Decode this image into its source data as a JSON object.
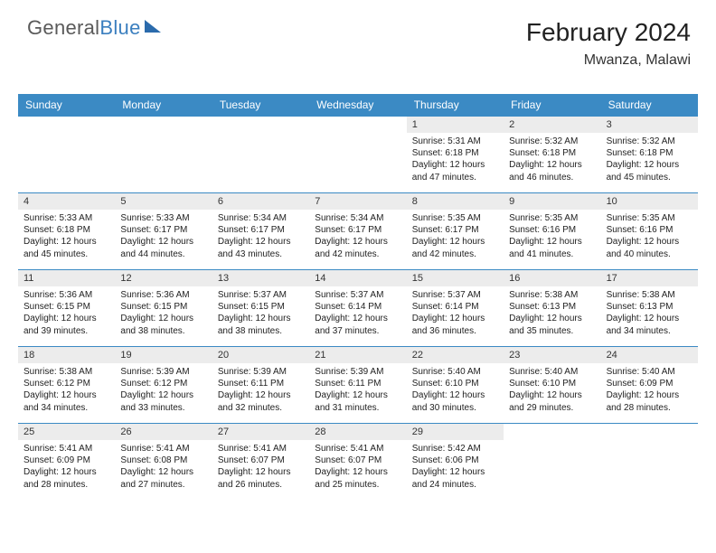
{
  "logo": {
    "word1": "General",
    "word2": "Blue"
  },
  "header": {
    "title": "February 2024",
    "subtitle": "Mwanza, Malawi"
  },
  "colors": {
    "header_bar": "#3b8ac4",
    "week_divider": "#3b8ac4",
    "daynum_bg": "#ececec",
    "text": "#222222",
    "logo_gray": "#5a5a5a",
    "logo_blue": "#3b7fbf"
  },
  "dayHeaders": [
    "Sunday",
    "Monday",
    "Tuesday",
    "Wednesday",
    "Thursday",
    "Friday",
    "Saturday"
  ],
  "weeks": [
    [
      {
        "n": "",
        "lines": []
      },
      {
        "n": "",
        "lines": []
      },
      {
        "n": "",
        "lines": []
      },
      {
        "n": "",
        "lines": []
      },
      {
        "n": "1",
        "lines": [
          "Sunrise: 5:31 AM",
          "Sunset: 6:18 PM",
          "Daylight: 12 hours",
          "and 47 minutes."
        ]
      },
      {
        "n": "2",
        "lines": [
          "Sunrise: 5:32 AM",
          "Sunset: 6:18 PM",
          "Daylight: 12 hours",
          "and 46 minutes."
        ]
      },
      {
        "n": "3",
        "lines": [
          "Sunrise: 5:32 AM",
          "Sunset: 6:18 PM",
          "Daylight: 12 hours",
          "and 45 minutes."
        ]
      }
    ],
    [
      {
        "n": "4",
        "lines": [
          "Sunrise: 5:33 AM",
          "Sunset: 6:18 PM",
          "Daylight: 12 hours",
          "and 45 minutes."
        ]
      },
      {
        "n": "5",
        "lines": [
          "Sunrise: 5:33 AM",
          "Sunset: 6:17 PM",
          "Daylight: 12 hours",
          "and 44 minutes."
        ]
      },
      {
        "n": "6",
        "lines": [
          "Sunrise: 5:34 AM",
          "Sunset: 6:17 PM",
          "Daylight: 12 hours",
          "and 43 minutes."
        ]
      },
      {
        "n": "7",
        "lines": [
          "Sunrise: 5:34 AM",
          "Sunset: 6:17 PM",
          "Daylight: 12 hours",
          "and 42 minutes."
        ]
      },
      {
        "n": "8",
        "lines": [
          "Sunrise: 5:35 AM",
          "Sunset: 6:17 PM",
          "Daylight: 12 hours",
          "and 42 minutes."
        ]
      },
      {
        "n": "9",
        "lines": [
          "Sunrise: 5:35 AM",
          "Sunset: 6:16 PM",
          "Daylight: 12 hours",
          "and 41 minutes."
        ]
      },
      {
        "n": "10",
        "lines": [
          "Sunrise: 5:35 AM",
          "Sunset: 6:16 PM",
          "Daylight: 12 hours",
          "and 40 minutes."
        ]
      }
    ],
    [
      {
        "n": "11",
        "lines": [
          "Sunrise: 5:36 AM",
          "Sunset: 6:15 PM",
          "Daylight: 12 hours",
          "and 39 minutes."
        ]
      },
      {
        "n": "12",
        "lines": [
          "Sunrise: 5:36 AM",
          "Sunset: 6:15 PM",
          "Daylight: 12 hours",
          "and 38 minutes."
        ]
      },
      {
        "n": "13",
        "lines": [
          "Sunrise: 5:37 AM",
          "Sunset: 6:15 PM",
          "Daylight: 12 hours",
          "and 38 minutes."
        ]
      },
      {
        "n": "14",
        "lines": [
          "Sunrise: 5:37 AM",
          "Sunset: 6:14 PM",
          "Daylight: 12 hours",
          "and 37 minutes."
        ]
      },
      {
        "n": "15",
        "lines": [
          "Sunrise: 5:37 AM",
          "Sunset: 6:14 PM",
          "Daylight: 12 hours",
          "and 36 minutes."
        ]
      },
      {
        "n": "16",
        "lines": [
          "Sunrise: 5:38 AM",
          "Sunset: 6:13 PM",
          "Daylight: 12 hours",
          "and 35 minutes."
        ]
      },
      {
        "n": "17",
        "lines": [
          "Sunrise: 5:38 AM",
          "Sunset: 6:13 PM",
          "Daylight: 12 hours",
          "and 34 minutes."
        ]
      }
    ],
    [
      {
        "n": "18",
        "lines": [
          "Sunrise: 5:38 AM",
          "Sunset: 6:12 PM",
          "Daylight: 12 hours",
          "and 34 minutes."
        ]
      },
      {
        "n": "19",
        "lines": [
          "Sunrise: 5:39 AM",
          "Sunset: 6:12 PM",
          "Daylight: 12 hours",
          "and 33 minutes."
        ]
      },
      {
        "n": "20",
        "lines": [
          "Sunrise: 5:39 AM",
          "Sunset: 6:11 PM",
          "Daylight: 12 hours",
          "and 32 minutes."
        ]
      },
      {
        "n": "21",
        "lines": [
          "Sunrise: 5:39 AM",
          "Sunset: 6:11 PM",
          "Daylight: 12 hours",
          "and 31 minutes."
        ]
      },
      {
        "n": "22",
        "lines": [
          "Sunrise: 5:40 AM",
          "Sunset: 6:10 PM",
          "Daylight: 12 hours",
          "and 30 minutes."
        ]
      },
      {
        "n": "23",
        "lines": [
          "Sunrise: 5:40 AM",
          "Sunset: 6:10 PM",
          "Daylight: 12 hours",
          "and 29 minutes."
        ]
      },
      {
        "n": "24",
        "lines": [
          "Sunrise: 5:40 AM",
          "Sunset: 6:09 PM",
          "Daylight: 12 hours",
          "and 28 minutes."
        ]
      }
    ],
    [
      {
        "n": "25",
        "lines": [
          "Sunrise: 5:41 AM",
          "Sunset: 6:09 PM",
          "Daylight: 12 hours",
          "and 28 minutes."
        ]
      },
      {
        "n": "26",
        "lines": [
          "Sunrise: 5:41 AM",
          "Sunset: 6:08 PM",
          "Daylight: 12 hours",
          "and 27 minutes."
        ]
      },
      {
        "n": "27",
        "lines": [
          "Sunrise: 5:41 AM",
          "Sunset: 6:07 PM",
          "Daylight: 12 hours",
          "and 26 minutes."
        ]
      },
      {
        "n": "28",
        "lines": [
          "Sunrise: 5:41 AM",
          "Sunset: 6:07 PM",
          "Daylight: 12 hours",
          "and 25 minutes."
        ]
      },
      {
        "n": "29",
        "lines": [
          "Sunrise: 5:42 AM",
          "Sunset: 6:06 PM",
          "Daylight: 12 hours",
          "and 24 minutes."
        ]
      },
      {
        "n": "",
        "lines": []
      },
      {
        "n": "",
        "lines": []
      }
    ]
  ]
}
